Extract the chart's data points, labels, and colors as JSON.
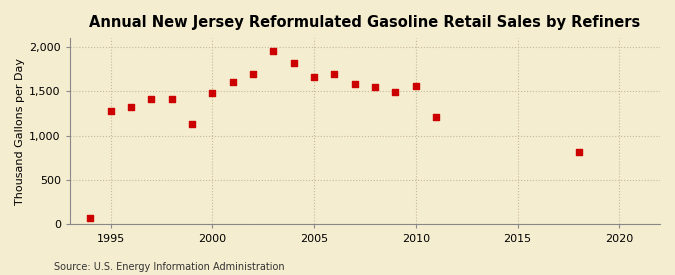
{
  "title": "Annual New Jersey Reformulated Gasoline Retail Sales by Refiners",
  "ylabel": "Thousand Gallons per Day",
  "source": "Source: U.S. Energy Information Administration",
  "years": [
    1994,
    1995,
    1996,
    1997,
    1998,
    1999,
    2000,
    2001,
    2002,
    2003,
    2004,
    2005,
    2006,
    2007,
    2008,
    2009,
    2010,
    2011,
    2018
  ],
  "values": [
    75,
    1275,
    1320,
    1410,
    1415,
    1130,
    1480,
    1600,
    1700,
    1960,
    1820,
    1660,
    1700,
    1580,
    1545,
    1495,
    1555,
    1215,
    820
  ],
  "marker_color": "#cc0000",
  "marker_size": 5,
  "background_color": "#f5edcf",
  "grid_color": "#c8b89a",
  "title_fontsize": 10.5,
  "label_fontsize": 8,
  "source_fontsize": 7,
  "xlim": [
    1993,
    2022
  ],
  "ylim": [
    0,
    2100
  ],
  "yticks": [
    0,
    500,
    1000,
    1500,
    2000
  ],
  "xticks": [
    1995,
    2000,
    2005,
    2010,
    2015,
    2020
  ]
}
